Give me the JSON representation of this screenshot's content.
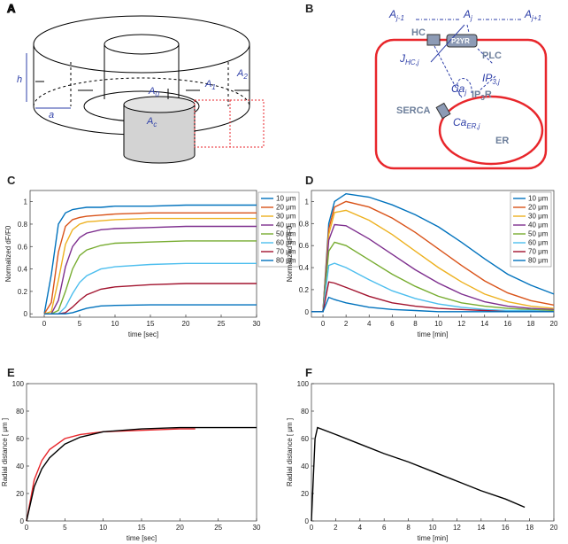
{
  "panel_a": {
    "letter": "A",
    "h": "h",
    "a": "a",
    "areas": [
      {
        "base": "A",
        "sub": "0"
      },
      {
        "base": "A",
        "sub": "1"
      },
      {
        "base": "A",
        "sub": "2"
      },
      {
        "base": "A",
        "sub": "c"
      }
    ]
  },
  "panel_b": {
    "letter": "B",
    "a_prev": {
      "base": "A",
      "sub": "j-1"
    },
    "a_cur": {
      "base": "A",
      "sub": "j"
    },
    "a_next": {
      "base": "A",
      "sub": "j+1"
    },
    "hc": "HC",
    "p2yr": "P2YR",
    "plc": "PLC",
    "jhc": {
      "base": "J",
      "sub": "HC,j"
    },
    "ip3": {
      "base": "IP",
      "sub": "3,j"
    },
    "ca": {
      "base": "Ca",
      "sub": "j"
    },
    "ip3r": {
      "base": "IP",
      "sub": "3",
      "tail": "R"
    },
    "serca": "SERCA",
    "caer": {
      "base": "Ca",
      "sub": "ER,j"
    },
    "er": "ER"
  },
  "chart_data": [
    {
      "type": "line",
      "panel": "C",
      "xlabel": "time [sec]",
      "ylabel": "Normalized dF/F0",
      "legend": "outside-northeast",
      "x": [
        0,
        1,
        2,
        3,
        4,
        5,
        6,
        8,
        10,
        15,
        20,
        25,
        30
      ],
      "xlim": [
        -2,
        30
      ],
      "xticks": [
        0,
        5,
        10,
        15,
        20,
        25,
        30
      ],
      "ylim": [
        -0.03,
        1.1
      ],
      "yticks": [
        0,
        0.2,
        0.4,
        0.6,
        0.8,
        1
      ],
      "series": [
        {
          "name": "10 μm",
          "color": "#0072bd",
          "values": [
            0,
            0.35,
            0.8,
            0.9,
            0.93,
            0.94,
            0.95,
            0.95,
            0.96,
            0.96,
            0.97,
            0.97,
            0.97
          ]
        },
        {
          "name": "20 μm",
          "color": "#d95319",
          "values": [
            0,
            0.1,
            0.55,
            0.78,
            0.84,
            0.86,
            0.87,
            0.88,
            0.89,
            0.9,
            0.9,
            0.9,
            0.9
          ]
        },
        {
          "name": "30 μm",
          "color": "#edb120",
          "values": [
            0,
            0.02,
            0.3,
            0.62,
            0.75,
            0.8,
            0.82,
            0.83,
            0.84,
            0.85,
            0.85,
            0.85,
            0.85
          ]
        },
        {
          "name": "40 μm",
          "color": "#7e2f8e",
          "values": [
            0,
            0,
            0.12,
            0.42,
            0.6,
            0.68,
            0.72,
            0.75,
            0.76,
            0.77,
            0.78,
            0.78,
            0.78
          ]
        },
        {
          "name": "50 μm",
          "color": "#77ac30",
          "values": [
            0,
            0,
            0.03,
            0.2,
            0.4,
            0.52,
            0.57,
            0.61,
            0.63,
            0.64,
            0.65,
            0.65,
            0.65
          ]
        },
        {
          "name": "60 μm",
          "color": "#4dbeee",
          "values": [
            0,
            0,
            0,
            0.06,
            0.18,
            0.28,
            0.34,
            0.4,
            0.42,
            0.44,
            0.45,
            0.45,
            0.45
          ]
        },
        {
          "name": "70 μm",
          "color": "#a2142f",
          "values": [
            0,
            0,
            0,
            0.01,
            0.06,
            0.12,
            0.17,
            0.22,
            0.24,
            0.26,
            0.27,
            0.27,
            0.27
          ]
        },
        {
          "name": "80 μm",
          "color": "#0072bd",
          "values": [
            0,
            0,
            0,
            0,
            0.01,
            0.03,
            0.05,
            0.07,
            0.075,
            0.08,
            0.08,
            0.08,
            0.08
          ]
        }
      ]
    },
    {
      "type": "line",
      "panel": "D",
      "xlabel": "time [min]",
      "ylabel": "Normalized dF/F0",
      "legend": "northeast",
      "x": [
        -1,
        0,
        0.5,
        1,
        2,
        4,
        6,
        8,
        10,
        12,
        14,
        16,
        18,
        20
      ],
      "xlim": [
        -1,
        20
      ],
      "xticks": [
        0,
        2,
        4,
        6,
        8,
        10,
        12,
        14,
        16,
        18,
        20
      ],
      "ylim": [
        -0.05,
        1.1
      ],
      "yticks": [
        0,
        0.2,
        0.4,
        0.6,
        0.8,
        1
      ],
      "series": [
        {
          "name": "10 μm",
          "color": "#0072bd",
          "values": [
            0,
            0,
            0.8,
            1.0,
            1.07,
            1.04,
            0.97,
            0.88,
            0.77,
            0.63,
            0.48,
            0.34,
            0.24,
            0.16
          ]
        },
        {
          "name": "20 μm",
          "color": "#d95319",
          "values": [
            0,
            0,
            0.75,
            0.95,
            1.0,
            0.95,
            0.85,
            0.72,
            0.57,
            0.42,
            0.28,
            0.17,
            0.1,
            0.06
          ]
        },
        {
          "name": "30 μm",
          "color": "#edb120",
          "values": [
            0,
            0,
            0.7,
            0.9,
            0.92,
            0.83,
            0.7,
            0.55,
            0.4,
            0.27,
            0.16,
            0.09,
            0.05,
            0.03
          ]
        },
        {
          "name": "40 μm",
          "color": "#7e2f8e",
          "values": [
            0,
            0,
            0.65,
            0.79,
            0.78,
            0.66,
            0.52,
            0.38,
            0.26,
            0.16,
            0.09,
            0.05,
            0.03,
            0.02
          ]
        },
        {
          "name": "50 μm",
          "color": "#77ac30",
          "values": [
            0,
            0,
            0.55,
            0.63,
            0.6,
            0.47,
            0.34,
            0.23,
            0.14,
            0.08,
            0.05,
            0.03,
            0.02,
            0.01
          ]
        },
        {
          "name": "60 μm",
          "color": "#4dbeee",
          "values": [
            0,
            0,
            0.42,
            0.44,
            0.4,
            0.29,
            0.19,
            0.12,
            0.07,
            0.04,
            0.02,
            0.01,
            0.01,
            0
          ]
        },
        {
          "name": "70 μm",
          "color": "#a2142f",
          "values": [
            0,
            0,
            0.27,
            0.26,
            0.22,
            0.14,
            0.08,
            0.05,
            0.03,
            0.02,
            0.01,
            0,
            0,
            0
          ]
        },
        {
          "name": "80 μm",
          "color": "#0072bd",
          "values": [
            0,
            0,
            0.13,
            0.11,
            0.08,
            0.04,
            0.02,
            0.01,
            0,
            0,
            0,
            0,
            0,
            0
          ]
        }
      ]
    },
    {
      "type": "line",
      "panel": "E",
      "xlabel": "time [sec]",
      "ylabel": "Radial distance [ μm ]",
      "xlim": [
        0,
        30
      ],
      "xticks": [
        0,
        5,
        10,
        15,
        20,
        25,
        30
      ],
      "ylim": [
        0,
        100
      ],
      "yticks": [
        0,
        20,
        40,
        60,
        80,
        100
      ],
      "series": [
        {
          "color": "#e8262b",
          "x": [
            0,
            1,
            2,
            3,
            5,
            7,
            10,
            15,
            20,
            22
          ],
          "values": [
            0,
            30,
            44,
            52,
            60,
            63,
            65,
            66,
            67,
            67
          ]
        },
        {
          "color": "#000000",
          "x": [
            0,
            1,
            2,
            3,
            5,
            7,
            10,
            15,
            20,
            25,
            30
          ],
          "values": [
            0,
            25,
            38,
            46,
            56,
            61,
            65,
            67,
            68,
            68,
            68
          ]
        }
      ]
    },
    {
      "type": "line",
      "panel": "F",
      "xlabel": "time [min]",
      "ylabel": "Radial distance [ μm ]",
      "xlim": [
        0,
        20
      ],
      "xticks": [
        0,
        2,
        4,
        6,
        8,
        10,
        12,
        14,
        16,
        18,
        20
      ],
      "ylim": [
        0,
        100
      ],
      "yticks": [
        0,
        20,
        40,
        60,
        80,
        100
      ],
      "series": [
        {
          "color": "#000000",
          "x": [
            0,
            0.3,
            0.5,
            2,
            4,
            6,
            8,
            10,
            12,
            14,
            16,
            17.6
          ],
          "values": [
            0,
            60,
            68,
            63,
            56,
            49,
            43,
            36,
            29,
            22,
            16,
            10
          ]
        }
      ]
    }
  ]
}
